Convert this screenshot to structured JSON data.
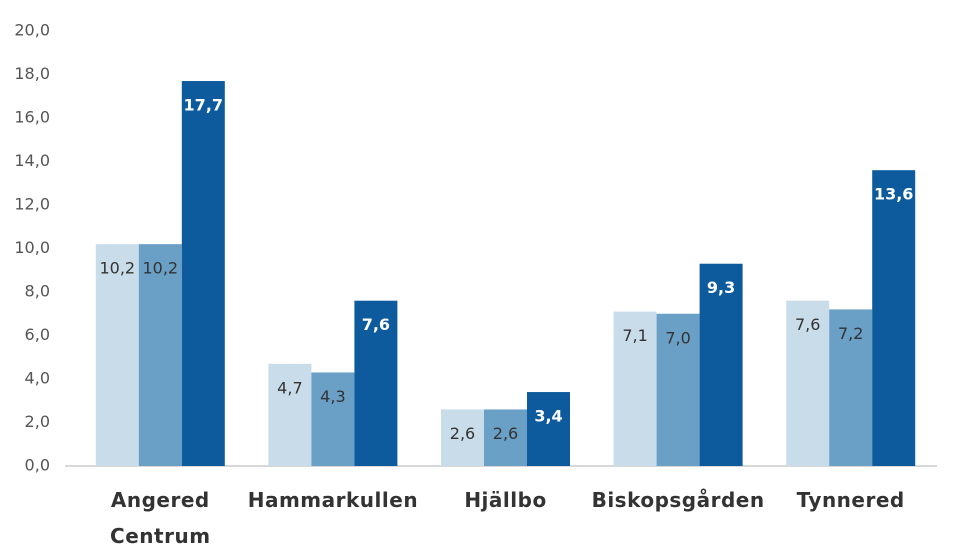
{
  "chart_data": {
    "type": "bar",
    "categories": [
      "Angered Centrum",
      "Hammarkullen",
      "Hjällbo",
      "Biskopsgården",
      "Tynnered"
    ],
    "series": [
      {
        "color": "#c9dcea",
        "values": [
          10.2,
          4.7,
          2.6,
          7.1,
          7.6
        ],
        "value_labels": [
          "10,2",
          "4,7",
          "2,6",
          "7,1",
          "7,6"
        ]
      },
      {
        "color": "#6a9fc6",
        "values": [
          10.2,
          4.3,
          2.6,
          7.0,
          7.2
        ],
        "value_labels": [
          "10,2",
          "4,3",
          "2,6",
          "7,0",
          "7,2"
        ]
      },
      {
        "color": "#0d5b9c",
        "values": [
          17.7,
          7.6,
          3.4,
          9.3,
          13.6
        ],
        "value_labels": [
          "17,7",
          "7,6",
          "3,4",
          "9,3",
          "13,6"
        ]
      }
    ],
    "ylim": [
      0,
      20
    ],
    "yticks": [
      {
        "value": 0,
        "label": "0,0"
      },
      {
        "value": 2,
        "label": "2,0"
      },
      {
        "value": 4,
        "label": "4,0"
      },
      {
        "value": 6,
        "label": "6,0"
      },
      {
        "value": 8,
        "label": "8,0"
      },
      {
        "value": 10,
        "label": "10,0"
      },
      {
        "value": 12,
        "label": "12,0"
      },
      {
        "value": 14,
        "label": "14,0"
      },
      {
        "value": 16,
        "label": "16,0"
      },
      {
        "value": 18,
        "label": "18,0"
      },
      {
        "value": 20,
        "label": "20,0"
      }
    ],
    "grid": false
  }
}
